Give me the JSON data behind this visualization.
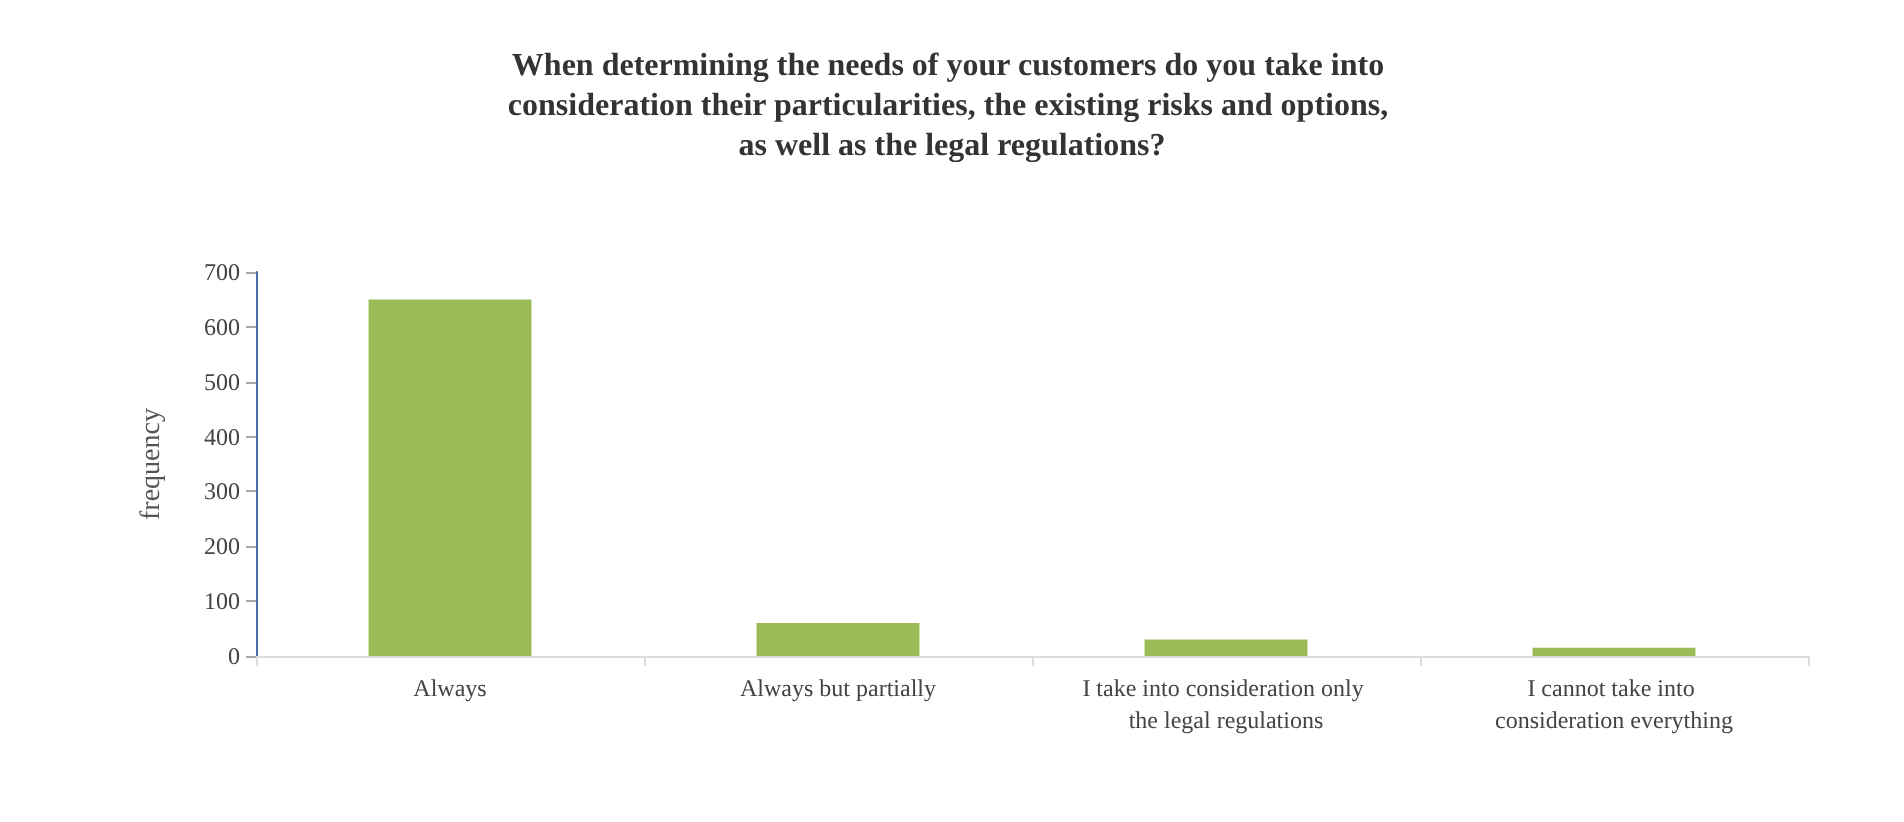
{
  "chart_data": {
    "type": "bar",
    "title": "When determining the needs of your customers do you take into consideration their particularities, the existing risks and options, as well as the legal regulations?",
    "ylabel": "frequency",
    "categories": [
      "Always",
      "Always but partially",
      "I take into consideration only the legal regulations",
      "I cannot take into consideration everything"
    ],
    "values": [
      650,
      60,
      30,
      15
    ],
    "color": "#9bbb59",
    "ylim": [
      0,
      700
    ],
    "yticks": [
      0,
      100,
      200,
      300,
      400,
      500,
      600,
      700
    ],
    "grid": false
  }
}
